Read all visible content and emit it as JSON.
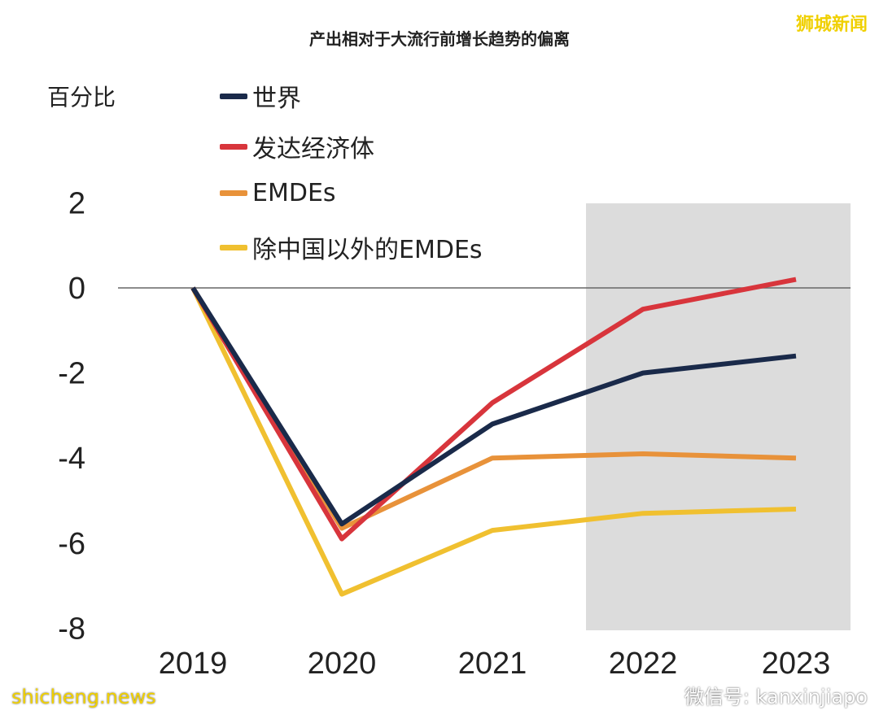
{
  "chart_data": {
    "type": "line",
    "title": "产出相对于大流行前增长趋势的偏离",
    "ylabel": "百分比",
    "xlabel": "",
    "x": [
      "2019",
      "2020",
      "2021",
      "2022",
      "2023"
    ],
    "yticks": [
      "2",
      "0",
      "-2",
      "-4",
      "-6",
      "-8"
    ],
    "ylim": [
      -8,
      2
    ],
    "shaded_region": [
      "2022",
      "2023"
    ],
    "legend_position": "top-left",
    "series": [
      {
        "name": "世界",
        "color": "#1a2a4a",
        "values": [
          0,
          -5.55,
          -3.2,
          -2.0,
          -1.6
        ]
      },
      {
        "name": "发达经济体",
        "color": "#d8353c",
        "values": [
          0,
          -5.9,
          -2.7,
          -0.5,
          0.2
        ]
      },
      {
        "name": "EMDEs",
        "color": "#e8923a",
        "values": [
          0,
          -5.65,
          -4.0,
          -3.9,
          -4.0
        ]
      },
      {
        "name": "除中国以外的EMDEs",
        "color": "#f0c030",
        "values": [
          0,
          -7.2,
          -5.7,
          -5.3,
          -5.2
        ]
      }
    ]
  },
  "watermarks": {
    "top_right": "狮城新闻",
    "bottom_left": "shicheng.news",
    "bottom_right": "微信号: kanxinjiapo"
  }
}
